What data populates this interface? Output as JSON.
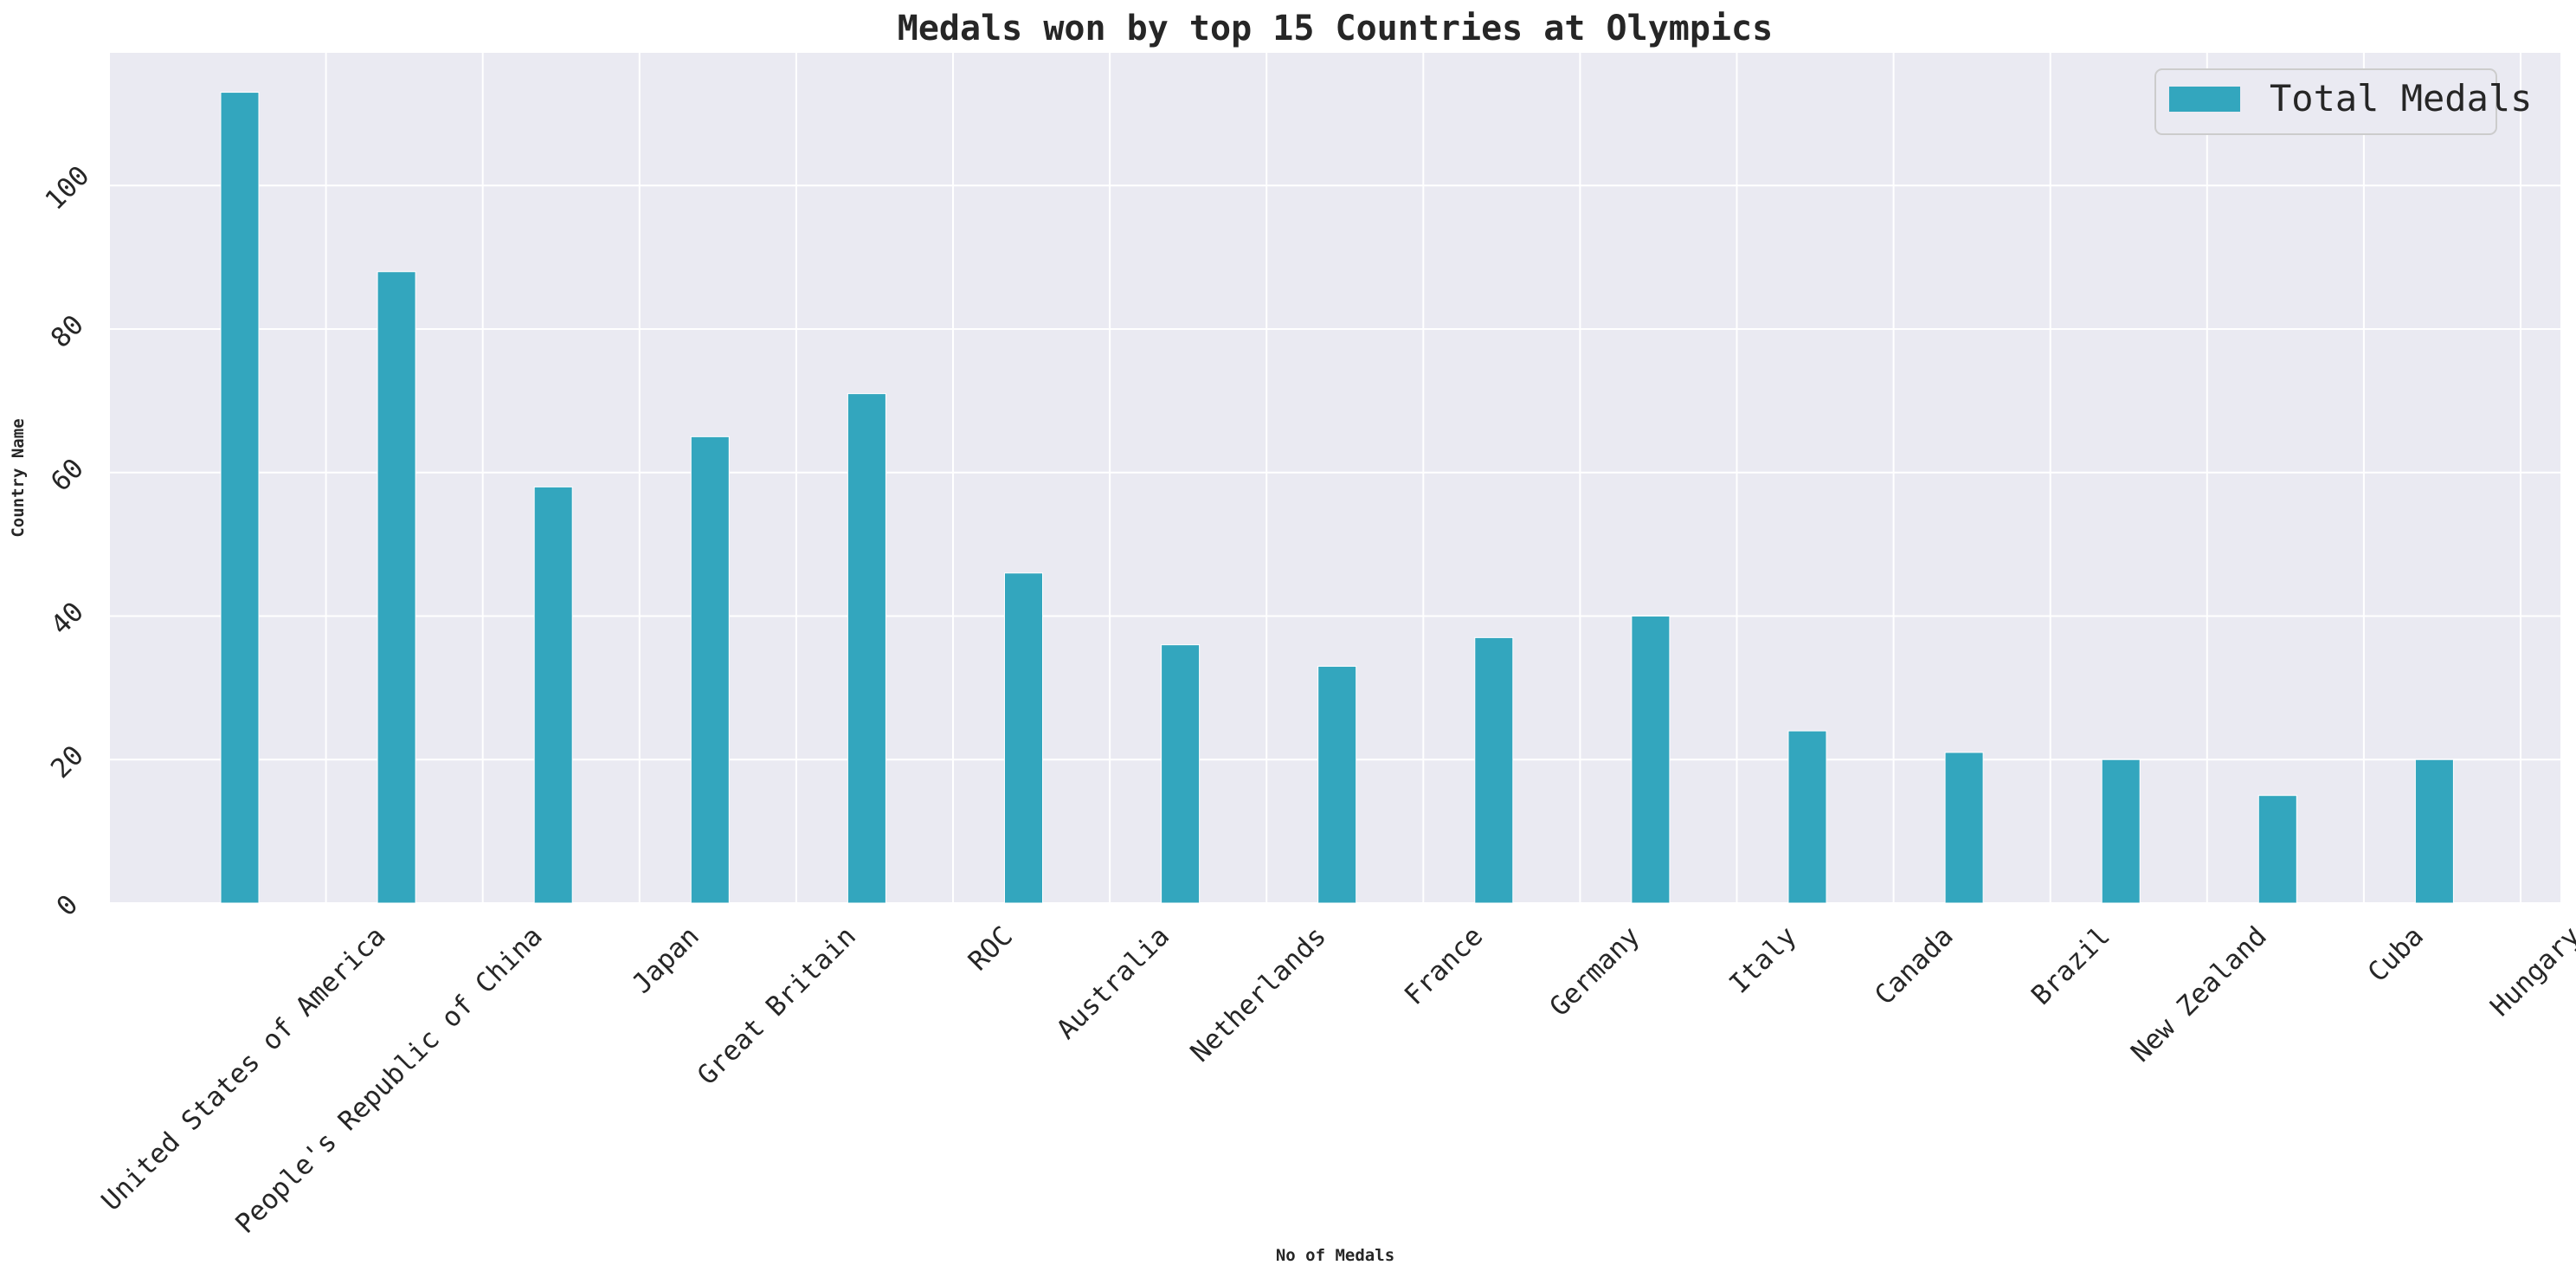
{
  "chart_data": {
    "type": "bar",
    "title": "Medals won by top 15 Countries at Olympics",
    "xlabel": "No of Medals",
    "ylabel": "Country Name",
    "categories": [
      "United States of America",
      "People's Republic of China",
      "Japan",
      "Great Britain",
      "ROC",
      "Australia",
      "Netherlands",
      "France",
      "Germany",
      "Italy",
      "Canada",
      "Brazil",
      "New Zealand",
      "Cuba",
      "Hungary"
    ],
    "series": [
      {
        "name": "Total Medals",
        "values": [
          113,
          88,
          58,
          65,
          71,
          46,
          36,
          33,
          37,
          40,
          24,
          21,
          20,
          15,
          20
        ],
        "color": "#33a6be"
      }
    ],
    "ylim": [
      0,
      118.5
    ],
    "yticks": [
      0,
      20,
      40,
      60,
      80,
      100
    ],
    "grid": true,
    "legend_position": "top-right",
    "background_color": "#eaeaf2",
    "grid_color": "#ffffff"
  }
}
